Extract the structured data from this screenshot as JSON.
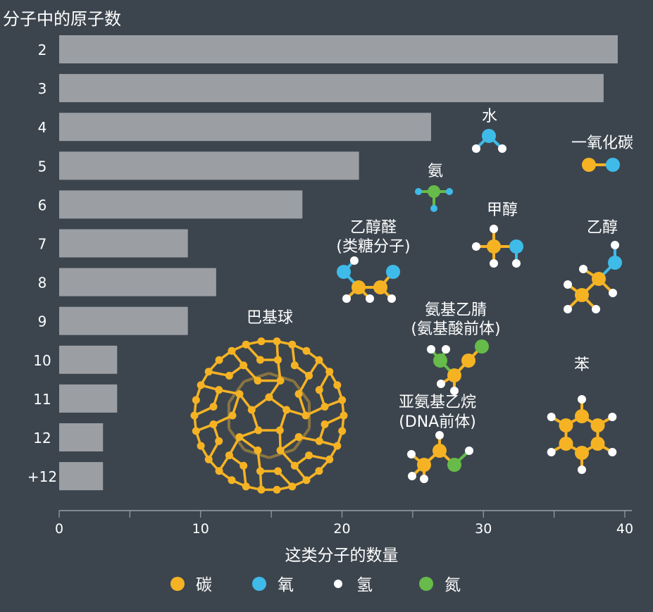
{
  "chart_data": {
    "type": "bar",
    "orientation": "horizontal",
    "title": "分子中的原子数",
    "xlabel": "这类分子的数量",
    "ylabel": "",
    "categories": [
      "2",
      "3",
      "4",
      "5",
      "6",
      "7",
      "8",
      "9",
      "10",
      "11",
      "12",
      "+12"
    ],
    "values": [
      39.5,
      38.5,
      26.3,
      21.2,
      17.2,
      9.1,
      11.1,
      9.1,
      4.1,
      4.1,
      3.1,
      3.1
    ],
    "xlim": [
      0,
      40
    ],
    "xticks": [
      "0",
      "10",
      "20",
      "30",
      "40"
    ],
    "grid": false,
    "bar_color": "#9b9fa4",
    "legend": [
      {
        "label": "碳",
        "color": "#f5b324"
      },
      {
        "label": "氧",
        "color": "#3fbbe9"
      },
      {
        "label": "氢",
        "color": "#ffffff"
      },
      {
        "label": "氮",
        "color": "#66bb4a"
      }
    ],
    "annotations": {
      "water": "水",
      "carbon_monoxide": "一氧化碳",
      "ammonia": "氨",
      "methanol": "甲醇",
      "glycolaldehyde_1": "乙醇醛",
      "glycolaldehyde_2": "(类糖分子)",
      "ethanol": "乙醇",
      "buckyball": "巴基球",
      "aminoacetonitrile_1": "氨基乙腈",
      "aminoacetonitrile_2": "(氨基酸前体)",
      "benzene": "苯",
      "ethanimine_1": "亚氨基乙烷",
      "ethanimine_2": "(DNA前体)"
    }
  }
}
